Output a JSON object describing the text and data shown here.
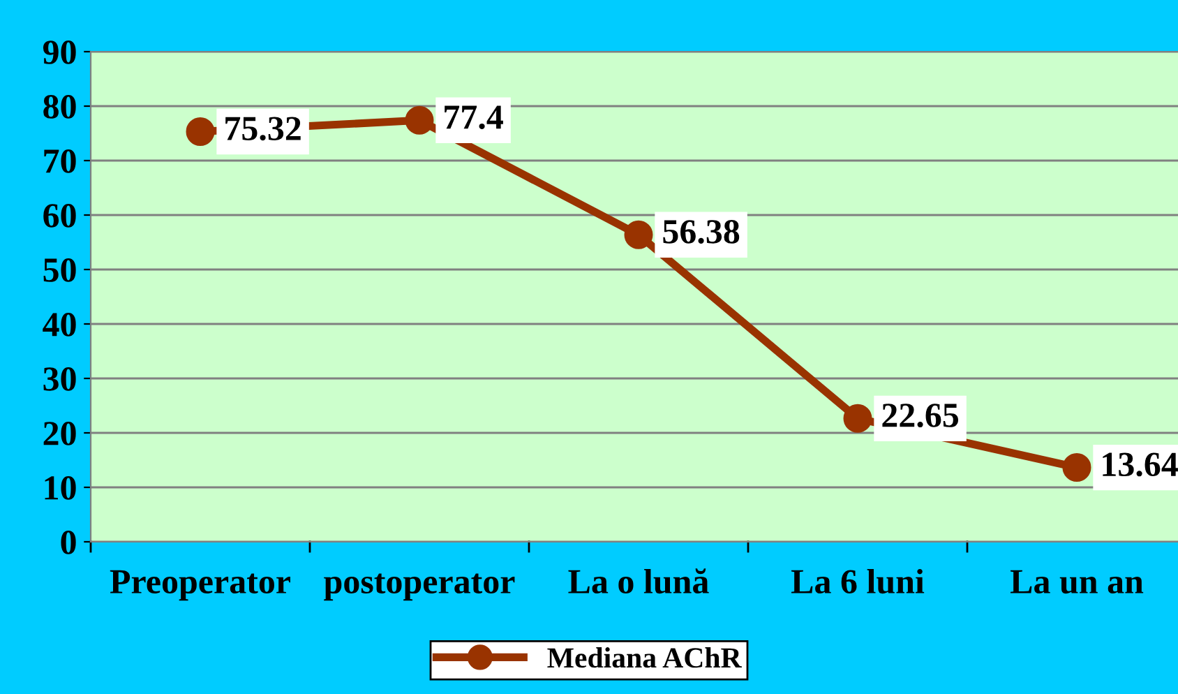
{
  "chart_data": {
    "type": "line",
    "categories": [
      "Preoperator",
      "postoperator",
      "La o lună",
      "La 6 luni",
      "La un an"
    ],
    "series": [
      {
        "name": "Mediana AChR",
        "color": "#993300",
        "values": [
          75.32,
          77.4,
          56.38,
          22.65,
          13.64
        ]
      }
    ],
    "ylim": [
      0,
      90
    ],
    "yticks": [
      0,
      10,
      20,
      30,
      40,
      50,
      60,
      70,
      80,
      90
    ],
    "grid": "y",
    "legend": "bottom",
    "marker": "circle",
    "line_style": "solid",
    "data_labels": true
  }
}
